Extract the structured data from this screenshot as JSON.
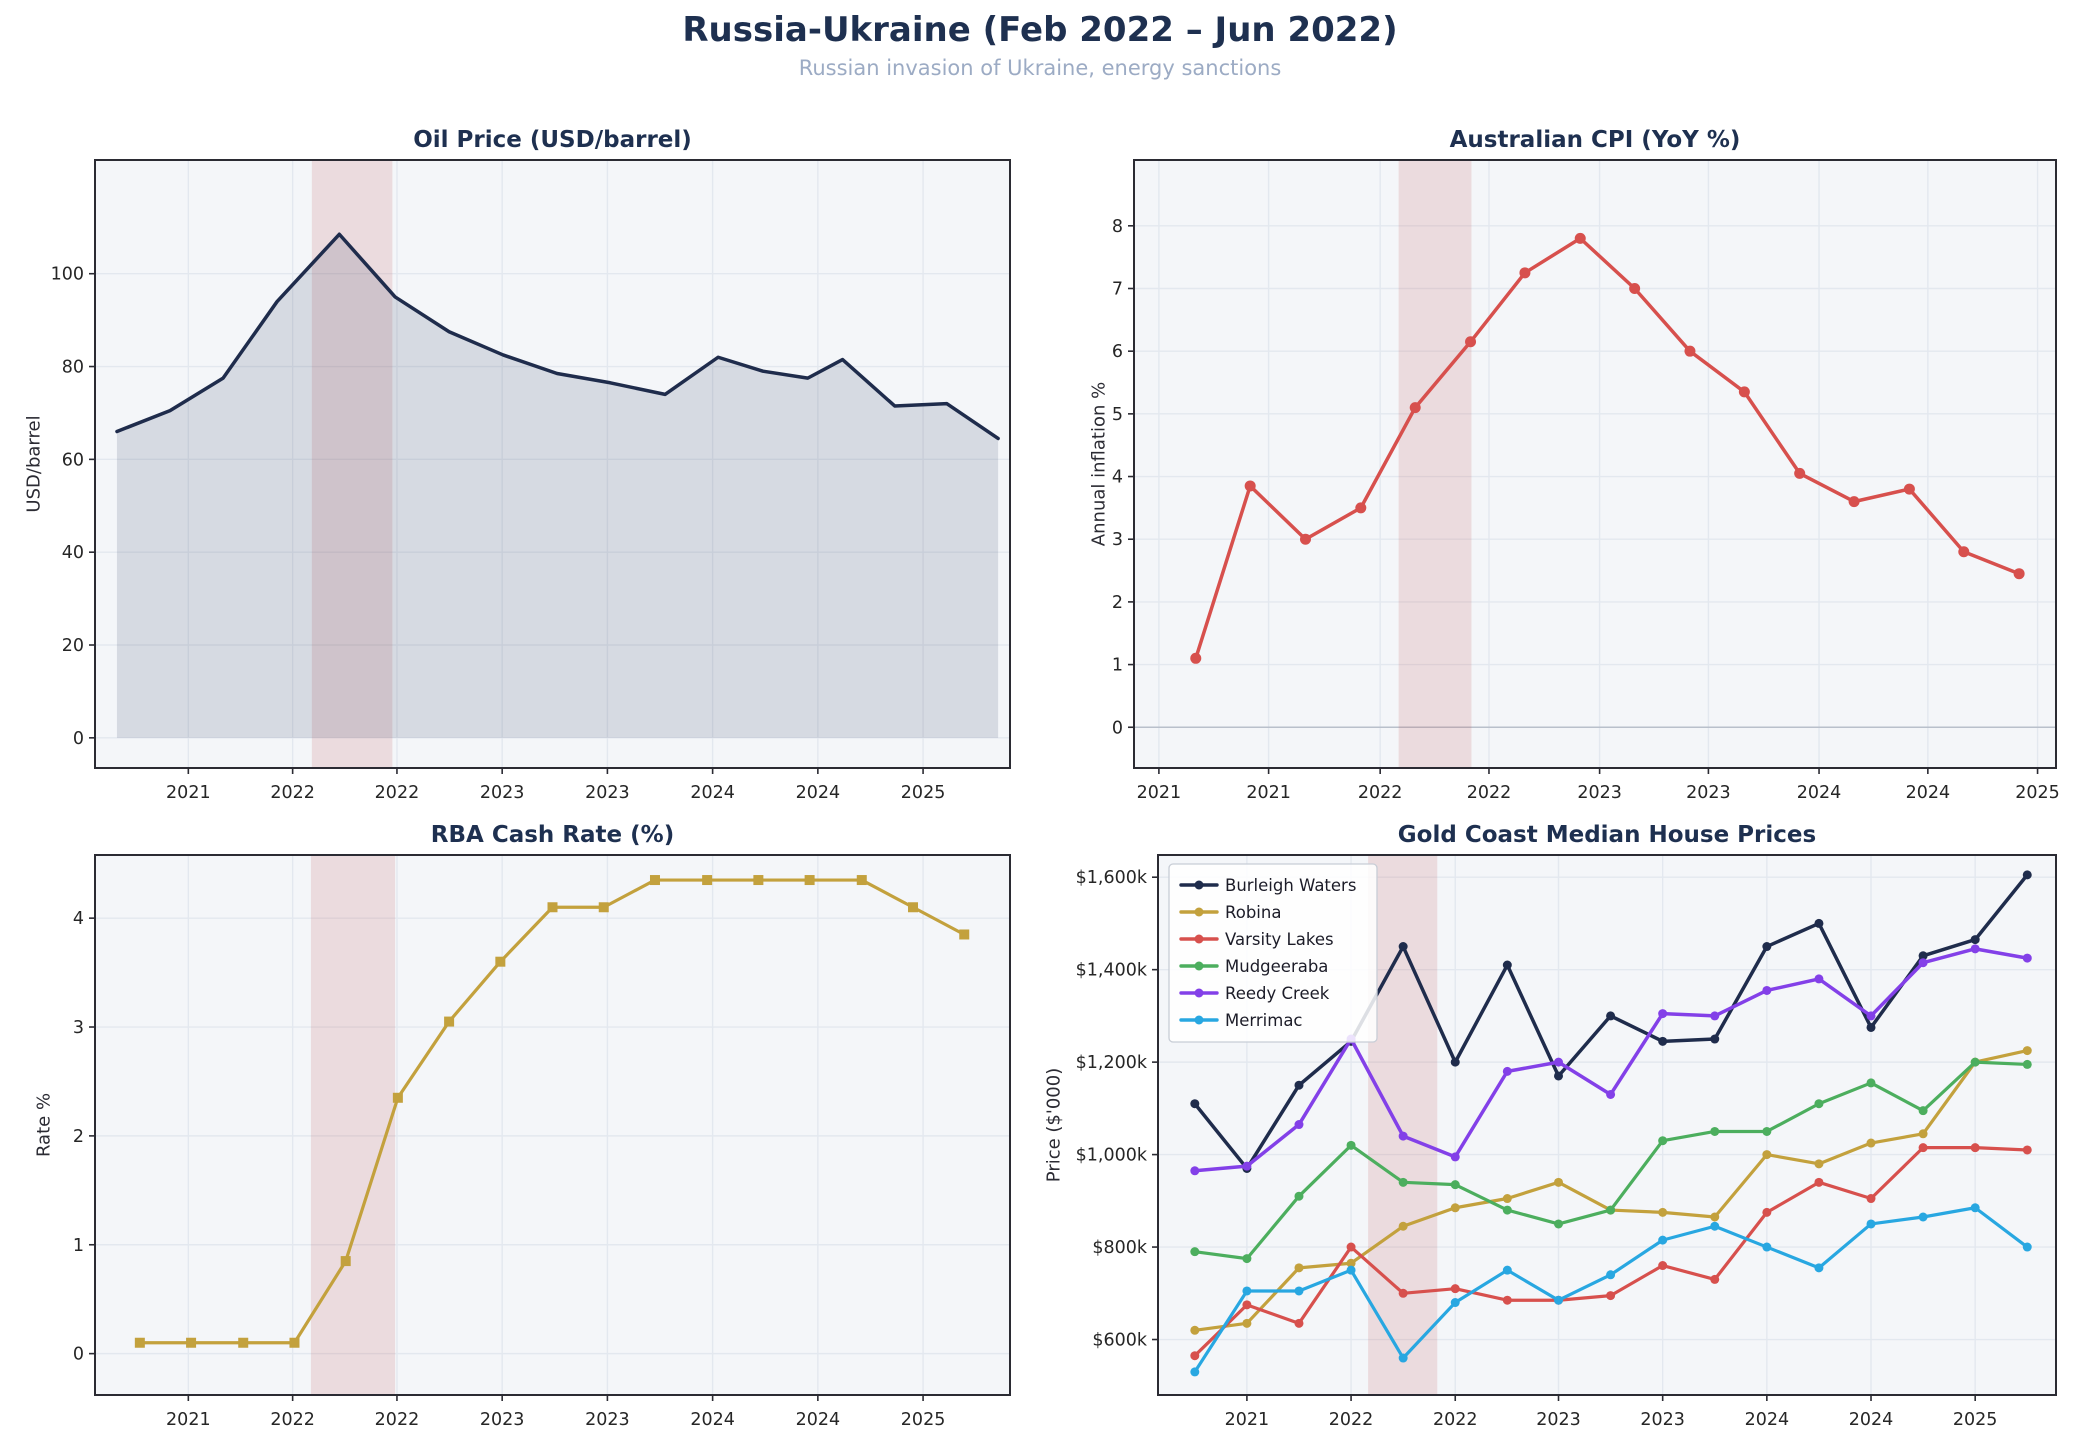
{
  "header": {
    "title": "Russia-Ukraine (Feb 2022 – Jun 2022)",
    "subtitle": "Russian invasion of Ukraine, energy sanctions"
  },
  "styles": {
    "figure_bg": "#ffffff",
    "plot_bg": "#f4f6f9",
    "grid_color": "#e3e8ef",
    "spine_color": "#2b2b33",
    "tick_label_color": "#262626",
    "title_color": "#1e3050",
    "subtitle_color": "#9cabc4",
    "event_band_color": "rgba(192,80,80,0.16)"
  },
  "chart_data": [
    {
      "id": "oil",
      "type": "area",
      "title": "Oil Price (USD/barrel)",
      "ylabel": "USD/barrel",
      "ylim": [
        -6.5,
        124.5
      ],
      "yticks": {
        "values": [
          0,
          20,
          40,
          60,
          80,
          100
        ],
        "labels": [
          "0",
          "20",
          "40",
          "60",
          "80",
          "100"
        ]
      },
      "xticks": {
        "fracs": [
          0.102,
          0.216,
          0.33,
          0.445,
          0.56,
          0.675,
          0.79,
          0.905
        ],
        "labels": [
          "2021",
          "2022",
          "2022",
          "2023",
          "2023",
          "2024",
          "2024",
          "2025"
        ]
      },
      "band_frac": [
        0.237,
        0.325
      ],
      "legend": false,
      "series": [
        {
          "name": "Oil price",
          "color": "#1f2c4c",
          "marker": "none",
          "width": 3.5,
          "fill": true,
          "fill_color": "rgba(49,62,91,0.15)",
          "fill_to": 0,
          "x_fracs": [
            0.024,
            0.082,
            0.14,
            0.199,
            0.267,
            0.328,
            0.387,
            0.446,
            0.505,
            0.563,
            0.623,
            0.681,
            0.73,
            0.779,
            0.817,
            0.874,
            0.931,
            0.987
          ],
          "values": [
            66,
            70.5,
            77.5,
            94,
            108.5,
            95,
            87.5,
            82.5,
            78.5,
            76.5,
            74,
            82,
            79,
            77.5,
            81.5,
            71.5,
            72,
            64.5
          ]
        }
      ]
    },
    {
      "id": "cpi",
      "type": "line",
      "title": "Australian CPI (YoY %)",
      "ylabel": "Annual inflation %",
      "ylim": [
        -0.65,
        9.05
      ],
      "yticks": {
        "values": [
          0,
          1,
          2,
          3,
          4,
          5,
          6,
          7,
          8
        ],
        "labels": [
          "0",
          "1",
          "2",
          "3",
          "4",
          "5",
          "6",
          "7",
          "8"
        ]
      },
      "xticks": {
        "fracs": [
          0.027,
          0.146,
          0.267,
          0.385,
          0.505,
          0.623,
          0.743,
          0.861,
          0.98
        ],
        "labels": [
          "2021",
          "2021",
          "2022",
          "2022",
          "2023",
          "2023",
          "2024",
          "2024",
          "2025"
        ]
      },
      "band_frac": [
        0.287,
        0.366
      ],
      "zero_line": true,
      "legend": false,
      "series": [
        {
          "name": "CPI YoY",
          "color": "#d7504d",
          "marker": "circle",
          "marker_size": 5.5,
          "width": 3.5,
          "x_fracs": [
            0.067,
            0.126,
            0.186,
            0.246,
            0.305,
            0.365,
            0.424,
            0.484,
            0.543,
            0.603,
            0.662,
            0.722,
            0.781,
            0.841,
            0.9,
            0.96
          ],
          "values": [
            1.1,
            3.85,
            3.0,
            3.5,
            5.1,
            6.15,
            7.25,
            7.8,
            7.0,
            6.0,
            5.35,
            4.05,
            3.6,
            3.8,
            2.8,
            2.45
          ]
        }
      ]
    },
    {
      "id": "rba",
      "type": "line",
      "title": "RBA Cash Rate (%)",
      "ylabel": "Rate %",
      "ylim": [
        -0.38,
        4.58
      ],
      "yticks": {
        "values": [
          0,
          1,
          2,
          3,
          4
        ],
        "labels": [
          "0",
          "1",
          "2",
          "3",
          "4"
        ]
      },
      "xticks": {
        "fracs": [
          0.102,
          0.216,
          0.33,
          0.445,
          0.56,
          0.675,
          0.79,
          0.905
        ],
        "labels": [
          "2021",
          "2022",
          "2022",
          "2023",
          "2023",
          "2024",
          "2024",
          "2025"
        ]
      },
      "band_frac": [
        0.236,
        0.328
      ],
      "legend": false,
      "series": [
        {
          "name": "Cash rate",
          "color": "#c3a13d",
          "marker": "square",
          "marker_size": 10,
          "width": 3.2,
          "x_fracs": [
            0.049,
            0.105,
            0.162,
            0.218,
            0.274,
            0.331,
            0.387,
            0.443,
            0.5,
            0.556,
            0.612,
            0.669,
            0.725,
            0.781,
            0.838,
            0.894,
            0.95
          ],
          "values": [
            0.1,
            0.1,
            0.1,
            0.1,
            0.85,
            2.35,
            3.05,
            3.6,
            4.1,
            4.1,
            4.35,
            4.35,
            4.35,
            4.35,
            4.35,
            4.1,
            3.85
          ]
        }
      ]
    },
    {
      "id": "house",
      "type": "line",
      "title": "Gold Coast Median House Prices",
      "ylabel": "Price ($'000)",
      "ylim": [
        480,
        1648
      ],
      "yticks": {
        "values": [
          600,
          800,
          1000,
          1200,
          1400,
          1600
        ],
        "labels": [
          "$600k",
          "$800k",
          "$1,000k",
          "$1,200k",
          "$1,400k",
          "$1,600k"
        ]
      },
      "xticks": {
        "fracs": [
          0.099,
          0.215,
          0.331,
          0.446,
          0.562,
          0.678,
          0.794,
          0.91
        ],
        "labels": [
          "2021",
          "2022",
          "2022",
          "2023",
          "2023",
          "2024",
          "2024",
          "2025"
        ]
      },
      "band_frac": [
        0.234,
        0.311
      ],
      "legend": true,
      "x_fracs_shared": [
        0.041,
        0.099,
        0.157,
        0.215,
        0.273,
        0.331,
        0.389,
        0.446,
        0.504,
        0.562,
        0.62,
        0.678,
        0.736,
        0.794,
        0.852,
        0.91,
        0.968
      ],
      "series": [
        {
          "name": "Burleigh Waters",
          "color": "#1f2c4c",
          "marker": "circle",
          "marker_size": 4.5,
          "width": 3.5,
          "values": [
            1110,
            970,
            1150,
            1245,
            1450,
            1200,
            1410,
            1170,
            1300,
            1245,
            1250,
            1450,
            1500,
            1275,
            1430,
            1465,
            1605
          ]
        },
        {
          "name": "Robina",
          "color": "#c3a13d",
          "marker": "circle",
          "marker_size": 4.5,
          "width": 3.2,
          "values": [
            620,
            635,
            755,
            765,
            845,
            885,
            905,
            940,
            880,
            875,
            865,
            1000,
            980,
            1025,
            1045,
            1200,
            1225
          ]
        },
        {
          "name": "Varsity Lakes",
          "color": "#d7504d",
          "marker": "circle",
          "marker_size": 4.5,
          "width": 3.2,
          "values": [
            565,
            675,
            635,
            800,
            700,
            710,
            685,
            685,
            695,
            760,
            730,
            875,
            940,
            905,
            1015,
            1015,
            1010
          ]
        },
        {
          "name": "Mudgeeraba",
          "color": "#4cae5e",
          "marker": "circle",
          "marker_size": 4.5,
          "width": 3.2,
          "values": [
            790,
            775,
            910,
            1020,
            940,
            935,
            880,
            850,
            880,
            1030,
            1050,
            1050,
            1110,
            1155,
            1095,
            1200,
            1195
          ]
        },
        {
          "name": "Reedy Creek",
          "color": "#8340e8",
          "marker": "circle",
          "marker_size": 4.5,
          "width": 3.5,
          "values": [
            965,
            975,
            1065,
            1250,
            1040,
            995,
            1180,
            1200,
            1130,
            1305,
            1300,
            1355,
            1380,
            1300,
            1415,
            1445,
            1425
          ]
        },
        {
          "name": "Merrimac",
          "color": "#28a7e1",
          "marker": "circle",
          "marker_size": 4.5,
          "width": 3.2,
          "values": [
            530,
            705,
            705,
            750,
            560,
            680,
            750,
            685,
            740,
            815,
            845,
            800,
            755,
            850,
            865,
            885,
            800
          ]
        }
      ]
    }
  ]
}
